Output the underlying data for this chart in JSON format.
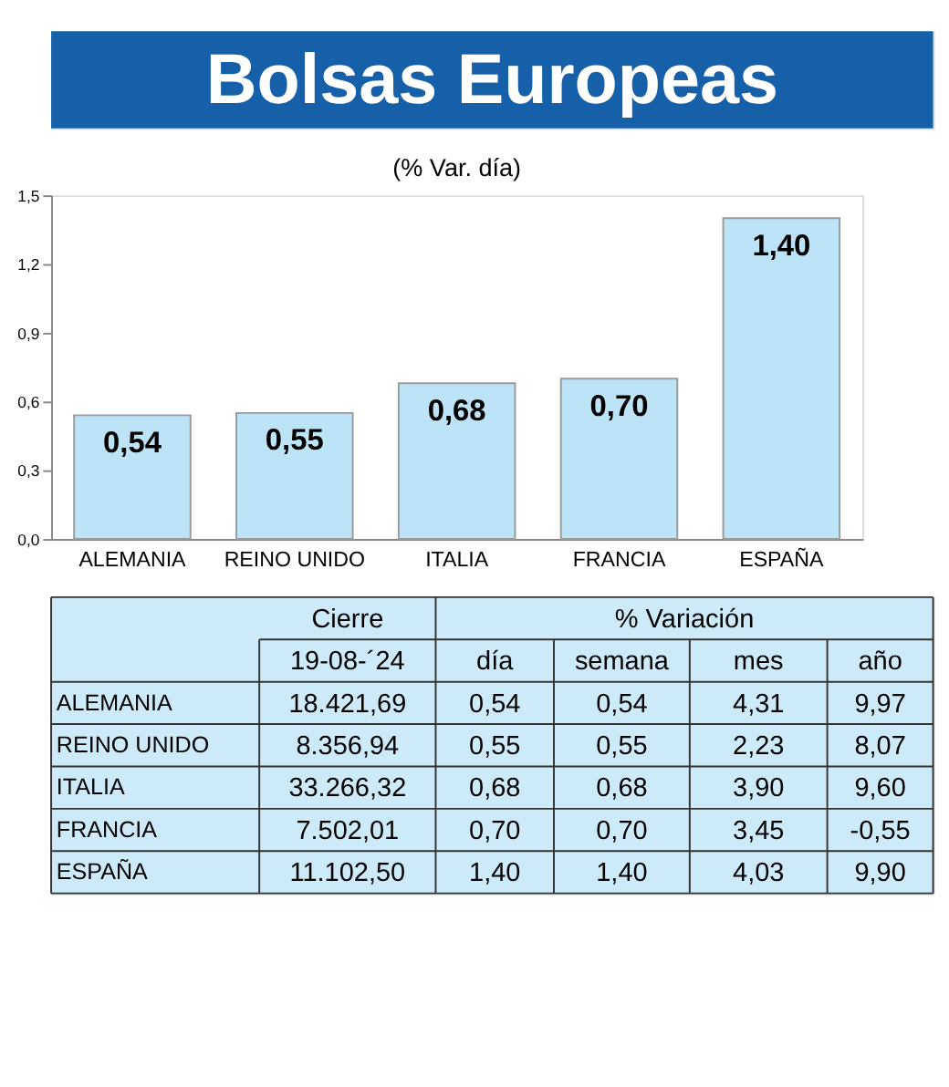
{
  "chart_data": [
    {
      "type": "bar",
      "title": "Bolsas Europeas",
      "subtitle": "(% Var. día)",
      "categories": [
        "ALEMANIA",
        "REINO UNIDO",
        "ITALIA",
        "FRANCIA",
        "ESPAÑA"
      ],
      "values": [
        0.54,
        0.55,
        0.68,
        0.7,
        1.4
      ],
      "value_labels": [
        "0,54",
        "0,55",
        "0,68",
        "0,70",
        "1,40"
      ],
      "color": "#bde3f6",
      "ylim": [
        0,
        1.5
      ],
      "yticks": [
        {
          "value": 0,
          "label": "0,0"
        },
        {
          "value": 0.3,
          "label": "0,3"
        },
        {
          "value": 0.6,
          "label": "0,6"
        },
        {
          "value": 0.9,
          "label": "0,9"
        },
        {
          "value": 1.2,
          "label": "1,2"
        },
        {
          "value": 1.5,
          "label": "1,5"
        }
      ],
      "grid": false
    },
    {
      "type": "other",
      "annotations": [
        "Cierre",
        "% Variación"
      ],
      "categories": [
        "19-08-´24",
        "día",
        "semana",
        "mes",
        "año"
      ],
      "y_categories": [
        "ALEMANIA",
        "REINO UNIDO",
        "ITALIA",
        "FRANCIA",
        "ESPAÑA"
      ],
      "cell_labels": [
        [
          "18.421,69",
          "0,54",
          "0,54",
          "4,31",
          "9,97"
        ],
        [
          "8.356,94",
          "0,55",
          "0,55",
          "2,23",
          "8,07"
        ],
        [
          "33.266,32",
          "0,68",
          "0,68",
          "3,90",
          "9,60"
        ],
        [
          "7.502,01",
          "0,70",
          "0,70",
          "3,45",
          "-0,55"
        ],
        [
          "11.102,50",
          "1,40",
          "1,40",
          "4,03",
          "9,90"
        ]
      ]
    }
  ]
}
